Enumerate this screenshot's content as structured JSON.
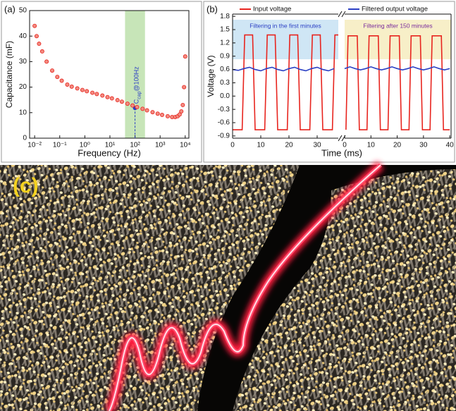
{
  "chart_data": [
    {
      "type": "scatter",
      "panel": "(a)",
      "xlabel": "Frequency (Hz)",
      "ylabel": "Capacitance (mF)",
      "color": "#e8251f",
      "xlog": true,
      "x": [
        0.01,
        0.012,
        0.015,
        0.02,
        0.03,
        0.05,
        0.08,
        0.12,
        0.2,
        0.3,
        0.5,
        0.8,
        1.2,
        2,
        3,
        5,
        8,
        12,
        20,
        30,
        50,
        80,
        120,
        200,
        300,
        500,
        800,
        1200,
        2000,
        3000,
        4000,
        5000,
        6000,
        7000,
        8000,
        9000,
        10000
      ],
      "values": [
        44,
        40,
        37,
        34,
        30,
        26.5,
        24,
        22.5,
        21,
        20.2,
        19.5,
        18.9,
        18.4,
        17.8,
        17.3,
        16.7,
        16.1,
        15.6,
        14.9,
        14.3,
        13.5,
        12.8,
        12.2,
        11.5,
        10.9,
        10.2,
        9.6,
        9.1,
        8.6,
        8.3,
        8.3,
        8.6,
        9.3,
        10.5,
        13,
        20,
        32
      ],
      "xlim": [
        0.0063,
        14000
      ],
      "xticks": [
        {
          "value": 0.01,
          "label": "10⁻²"
        },
        {
          "value": 0.1,
          "label": "10⁻¹"
        },
        {
          "value": 1,
          "label": "10⁰"
        },
        {
          "value": 10,
          "label": "10¹"
        },
        {
          "value": 100,
          "label": "10²"
        },
        {
          "value": 1000,
          "label": "10³"
        },
        {
          "value": 10000,
          "label": "10⁴"
        }
      ],
      "ylim": [
        0,
        50
      ],
      "yticks": [
        0,
        10,
        20,
        30,
        40,
        50
      ],
      "highlight_range": [
        40,
        250
      ],
      "highlight_color": "#b9dfa6",
      "marker_x": 100,
      "marker_value": 11.8,
      "annotation": {
        "main": "C",
        "sub": "cap",
        "rest": "@100Hz"
      }
    },
    {
      "type": "line",
      "panel": "(b)",
      "xlabel": "Time (ms)",
      "ylabel": "Voltage (V)",
      "series": [
        {
          "name": "Input voltage",
          "color": "#e8251f"
        },
        {
          "name": "Filtered output voltage",
          "color": "#2b3fc4"
        }
      ],
      "ylim": [
        -0.95,
        1.85
      ],
      "yticks": [
        -0.9,
        -0.6,
        -0.3,
        {
          "value": 0,
          "label": "0.0"
        },
        0.3,
        0.6,
        0.9,
        1.2,
        1.5,
        1.8
      ],
      "segments": [
        {
          "label": "Filtering in the first minutes",
          "background": "#cfe6f5",
          "label_color": "#2b3fc4",
          "xlim": [
            0,
            37.5
          ],
          "xticks": [
            0,
            10,
            20,
            30
          ],
          "series": [
            {
              "x": [
                0,
                3.4,
                4.3,
                7.1,
                8,
                11.4,
                12.3,
                15.1,
                16,
                19.4,
                20.3,
                23.1,
                24,
                27.4,
                28.3,
                31.1,
                32,
                35.4,
                36.3,
                37.5
              ],
              "values": [
                -0.76,
                -0.76,
                1.38,
                1.38,
                -0.76,
                -0.76,
                1.38,
                1.38,
                -0.76,
                -0.76,
                1.38,
                1.38,
                -0.76,
                -0.76,
                1.38,
                1.38,
                -0.76,
                -0.76,
                1.38,
                1.38
              ]
            },
            {
              "x": [
                0,
                2,
                4,
                6,
                8,
                10,
                12,
                14,
                16,
                18,
                20,
                22,
                24,
                26,
                28,
                30,
                32,
                34,
                36
              ],
              "values": [
                0.6,
                0.58,
                0.62,
                0.65,
                0.6,
                0.57,
                0.62,
                0.65,
                0.6,
                0.57,
                0.62,
                0.65,
                0.6,
                0.57,
                0.62,
                0.65,
                0.6,
                0.57,
                0.62
              ]
            }
          ]
        },
        {
          "label": "Filtering after 150 minutes",
          "background": "#f7efc8",
          "label_color": "#7a2c9c",
          "xlim": [
            0,
            40.5
          ],
          "xticks": [
            0,
            10,
            20,
            30,
            40
          ],
          "series": [
            {
              "x": [
                0.5,
                1.3,
                4.8,
                5.6,
                8.5,
                9.3,
                12.8,
                13.6,
                16.5,
                17.3,
                20.8,
                21.6,
                24.5,
                25.3,
                28.8,
                29.6,
                32.5,
                33.3,
                36.8,
                37.6,
                40
              ],
              "values": [
                -0.76,
                1.36,
                1.36,
                -0.76,
                -0.76,
                1.36,
                1.36,
                -0.76,
                -0.76,
                1.36,
                1.36,
                -0.76,
                -0.76,
                1.36,
                1.36,
                -0.76,
                -0.76,
                1.36,
                1.36,
                -0.76,
                -0.76
              ]
            },
            {
              "x": [
                0,
                2,
                4,
                6,
                8,
                10,
                12,
                14,
                16,
                18,
                20,
                22,
                24,
                26,
                28,
                30,
                32,
                34,
                36,
                38,
                40
              ],
              "values": [
                0.62,
                0.66,
                0.62,
                0.59,
                0.62,
                0.66,
                0.62,
                0.59,
                0.62,
                0.66,
                0.62,
                0.59,
                0.62,
                0.66,
                0.62,
                0.59,
                0.62,
                0.66,
                0.62,
                0.59,
                0.62
              ]
            }
          ]
        }
      ]
    }
  ],
  "photo": {
    "panel": "(c)"
  }
}
